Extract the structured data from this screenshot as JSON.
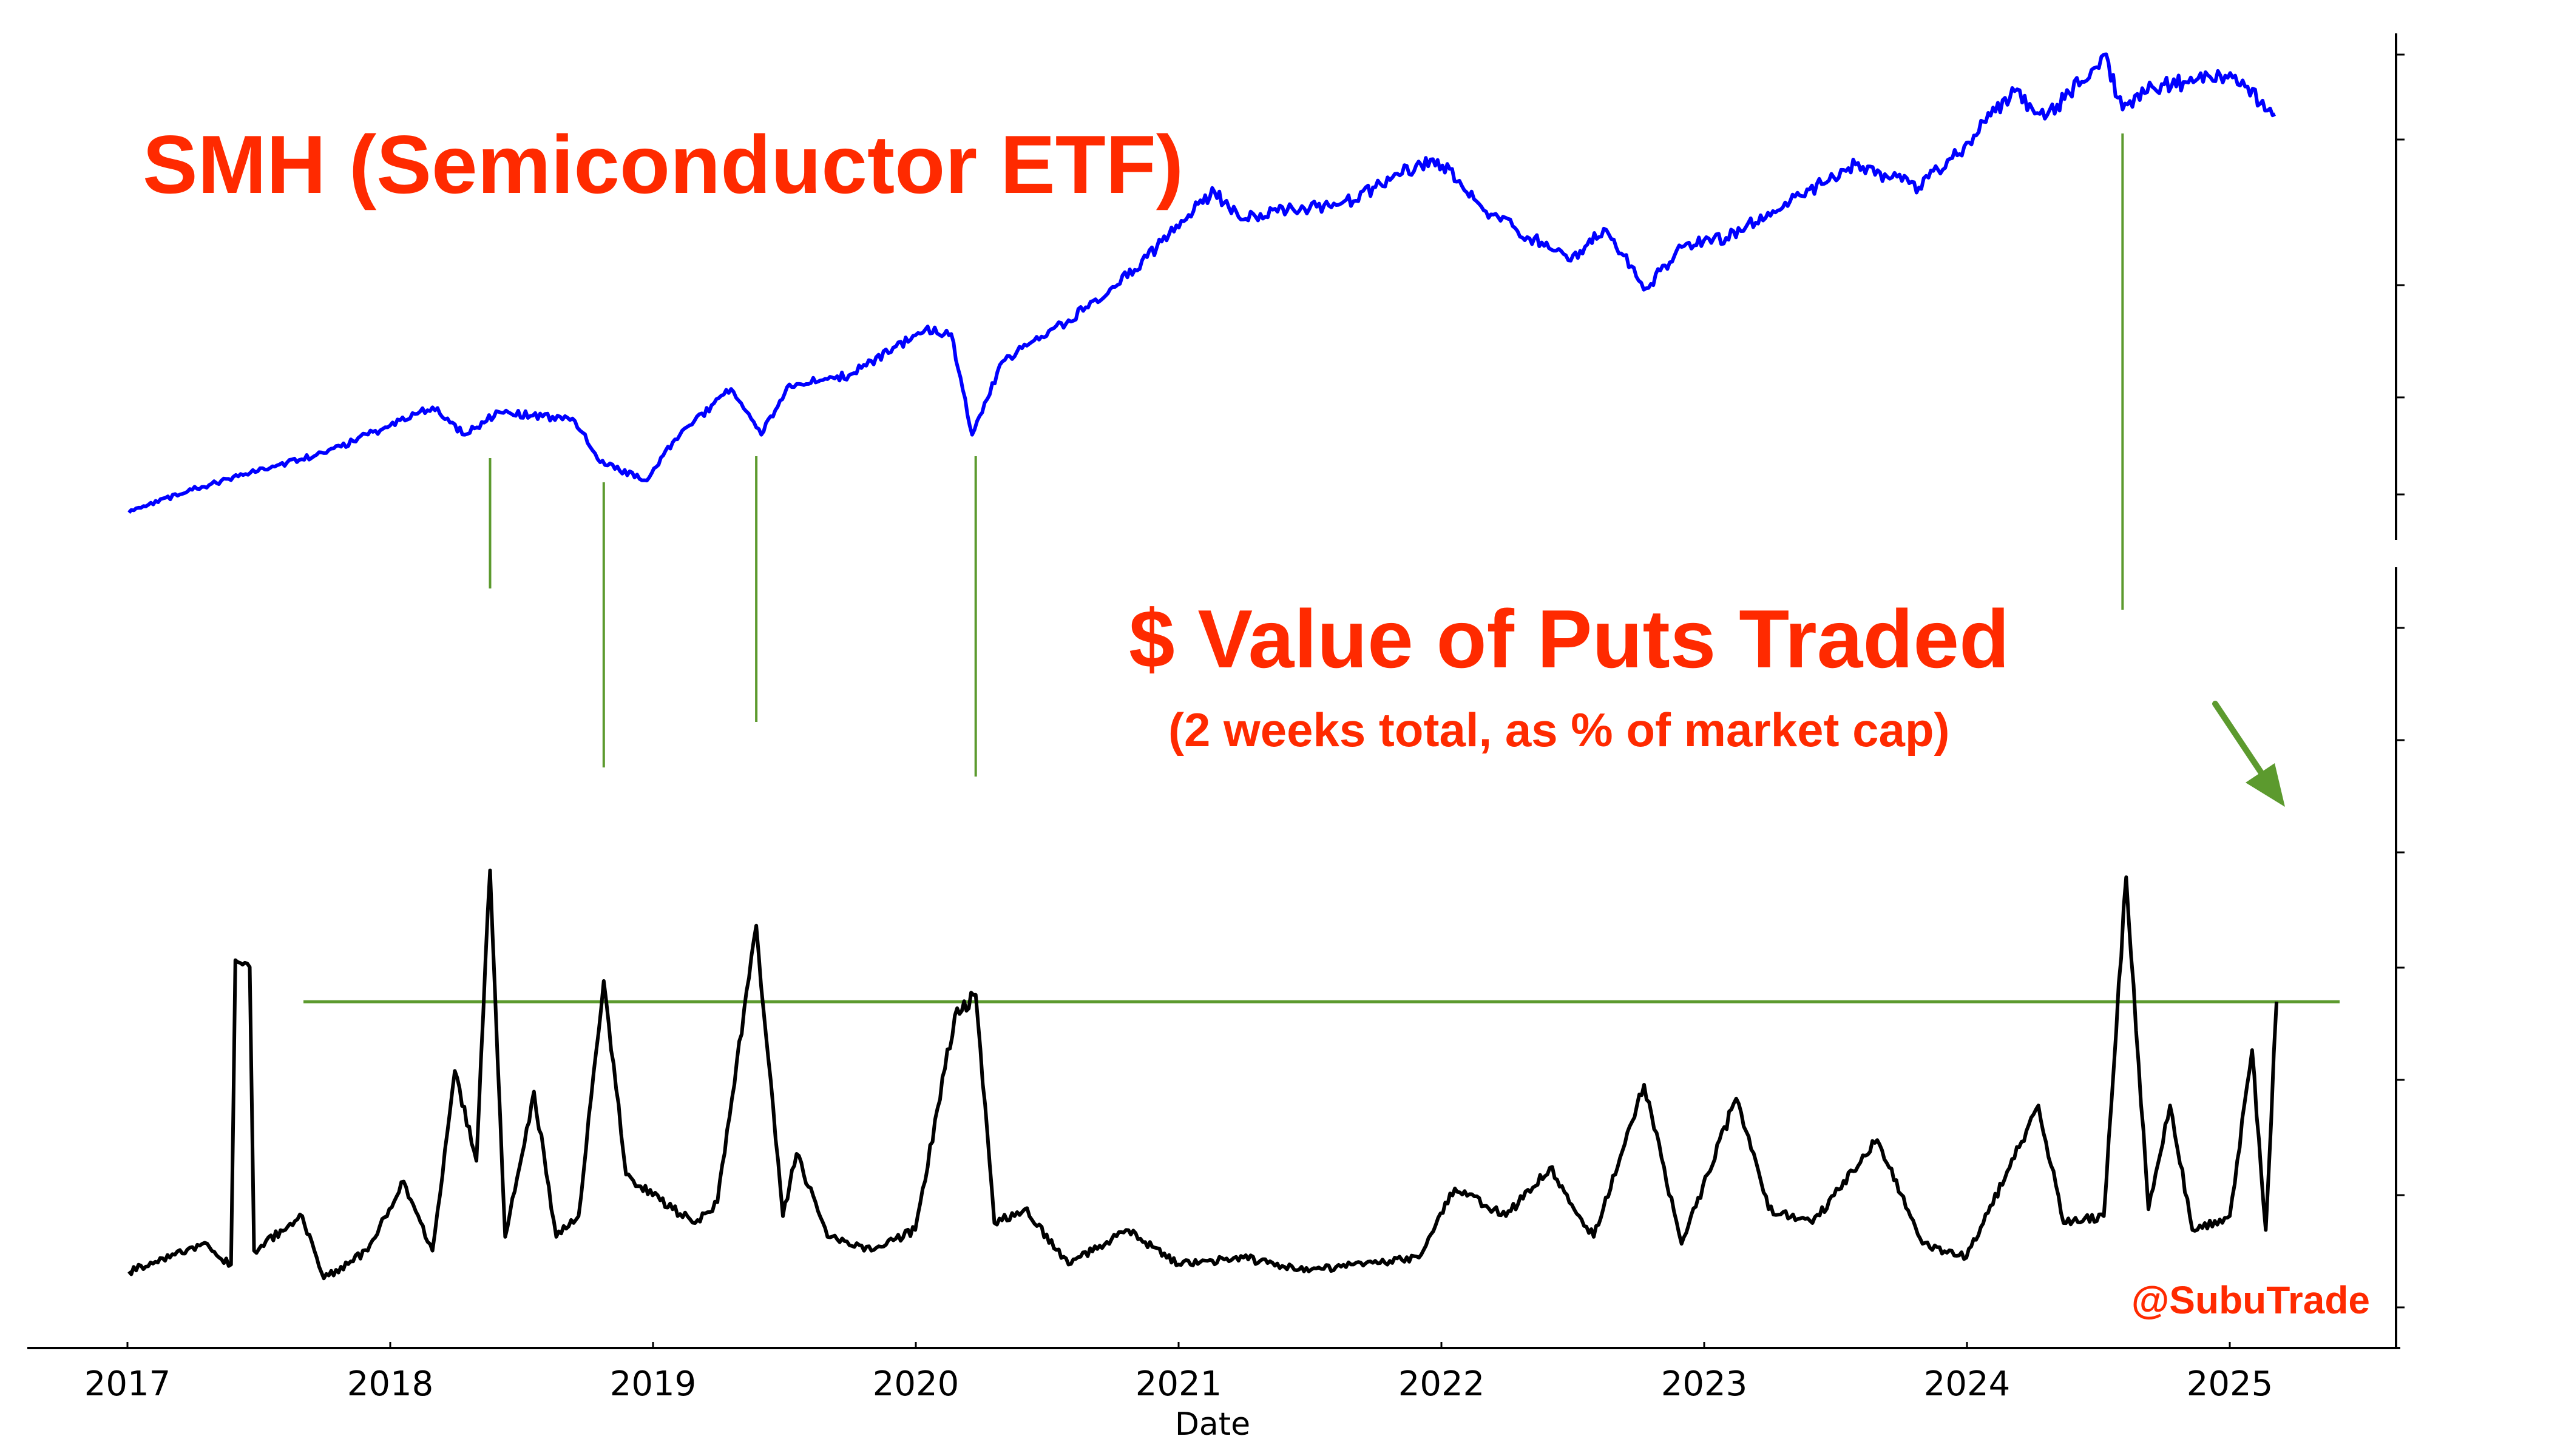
{
  "chart_data": {
    "type": "line",
    "xlabel": "Date",
    "x_ticks": [
      "2017",
      "2018",
      "2019",
      "2020",
      "2021",
      "2022",
      "2023",
      "2024",
      "2025"
    ],
    "xlim": [
      "2017-01-01",
      "2025-06-30"
    ],
    "grid": false,
    "panels": [
      {
        "name": "top",
        "title": "SMH (Semiconductor ETF)",
        "series": [
          {
            "color": "#0000ff",
            "points": [
              [
                "2017-01-03",
                0.0
              ],
              [
                "2017-04-01",
                0.05
              ],
              [
                "2017-07-01",
                0.09
              ],
              [
                "2017-10-01",
                0.13
              ],
              [
                "2018-01-01",
                0.19
              ],
              [
                "2018-03-01",
                0.23
              ],
              [
                "2018-04-15",
                0.17
              ],
              [
                "2018-06-01",
                0.22
              ],
              [
                "2018-08-01",
                0.21
              ],
              [
                "2018-09-15",
                0.2
              ],
              [
                "2018-10-20",
                0.11
              ],
              [
                "2018-12-24",
                0.07
              ],
              [
                "2019-02-01",
                0.16
              ],
              [
                "2019-04-20",
                0.27
              ],
              [
                "2019-06-01",
                0.17
              ],
              [
                "2019-07-10",
                0.28
              ],
              [
                "2019-10-01",
                0.3
              ],
              [
                "2020-01-15",
                0.4
              ],
              [
                "2020-02-20",
                0.39
              ],
              [
                "2020-03-20",
                0.17
              ],
              [
                "2020-05-01",
                0.33
              ],
              [
                "2020-08-01",
                0.42
              ],
              [
                "2020-11-01",
                0.53
              ],
              [
                "2021-01-15",
                0.65
              ],
              [
                "2021-02-20",
                0.7
              ],
              [
                "2021-04-01",
                0.64
              ],
              [
                "2021-06-01",
                0.66
              ],
              [
                "2021-09-01",
                0.68
              ],
              [
                "2021-11-01",
                0.74
              ],
              [
                "2021-12-27",
                0.77
              ],
              [
                "2022-03-01",
                0.66
              ],
              [
                "2022-06-30",
                0.55
              ],
              [
                "2022-08-15",
                0.62
              ],
              [
                "2022-10-13",
                0.49
              ],
              [
                "2022-12-01",
                0.58
              ],
              [
                "2023-02-01",
                0.6
              ],
              [
                "2023-05-01",
                0.68
              ],
              [
                "2023-07-31",
                0.76
              ],
              [
                "2023-10-27",
                0.71
              ],
              [
                "2023-12-29",
                0.8
              ],
              [
                "2024-03-08",
                0.92
              ],
              [
                "2024-04-19",
                0.86
              ],
              [
                "2024-07-10",
                1.0
              ],
              [
                "2024-08-05",
                0.88
              ],
              [
                "2024-09-15",
                0.93
              ],
              [
                "2024-11-01",
                0.94
              ],
              [
                "2025-01-05",
                0.95
              ],
              [
                "2025-03-05",
                0.87
              ]
            ]
          }
        ]
      },
      {
        "name": "bottom",
        "title": "$ Value of Puts Traded",
        "subtitle": "(2 weeks total, as % of market cap)",
        "threshold": 0.42,
        "series": [
          {
            "color": "#000000",
            "points": [
              [
                "2017-01-03",
                0.03
              ],
              [
                "2017-03-01",
                0.05
              ],
              [
                "2017-04-15",
                0.07
              ],
              [
                "2017-05-25",
                0.04
              ],
              [
                "2017-05-31",
                0.48
              ],
              [
                "2017-06-20",
                0.47
              ],
              [
                "2017-06-26",
                0.06
              ],
              [
                "2017-09-01",
                0.11
              ],
              [
                "2017-10-01",
                0.02
              ],
              [
                "2017-12-01",
                0.06
              ],
              [
                "2018-01-20",
                0.16
              ],
              [
                "2018-03-01",
                0.06
              ],
              [
                "2018-04-01",
                0.32
              ],
              [
                "2018-05-01",
                0.19
              ],
              [
                "2018-05-20",
                0.61
              ],
              [
                "2018-06-10",
                0.08
              ],
              [
                "2018-07-20",
                0.29
              ],
              [
                "2018-08-20",
                0.08
              ],
              [
                "2018-09-20",
                0.11
              ],
              [
                "2018-10-25",
                0.45
              ],
              [
                "2018-11-25",
                0.17
              ],
              [
                "2019-01-01",
                0.14
              ],
              [
                "2019-03-01",
                0.1
              ],
              [
                "2019-04-01",
                0.13
              ],
              [
                "2019-05-25",
                0.53
              ],
              [
                "2019-07-01",
                0.11
              ],
              [
                "2019-07-20",
                0.2
              ],
              [
                "2019-09-01",
                0.08
              ],
              [
                "2019-11-01",
                0.06
              ],
              [
                "2020-01-01",
                0.09
              ],
              [
                "2020-02-25",
                0.4
              ],
              [
                "2020-03-25",
                0.43
              ],
              [
                "2020-04-20",
                0.1
              ],
              [
                "2020-06-01",
                0.12
              ],
              [
                "2020-08-01",
                0.04
              ],
              [
                "2020-10-20",
                0.09
              ],
              [
                "2021-01-01",
                0.04
              ],
              [
                "2021-04-01",
                0.05
              ],
              [
                "2021-07-01",
                0.03
              ],
              [
                "2021-09-01",
                0.04
              ],
              [
                "2021-12-01",
                0.05
              ],
              [
                "2022-01-20",
                0.15
              ],
              [
                "2022-04-01",
                0.11
              ],
              [
                "2022-06-01",
                0.18
              ],
              [
                "2022-08-01",
                0.08
              ],
              [
                "2022-10-10",
                0.3
              ],
              [
                "2022-12-01",
                0.07
              ],
              [
                "2023-02-15",
                0.28
              ],
              [
                "2023-04-01",
                0.12
              ],
              [
                "2023-06-01",
                0.1
              ],
              [
                "2023-08-30",
                0.22
              ],
              [
                "2023-11-01",
                0.07
              ],
              [
                "2024-01-01",
                0.05
              ],
              [
                "2024-03-01",
                0.18
              ],
              [
                "2024-04-10",
                0.27
              ],
              [
                "2024-05-15",
                0.1
              ],
              [
                "2024-07-10",
                0.11
              ],
              [
                "2024-08-10",
                0.6
              ],
              [
                "2024-09-10",
                0.12
              ],
              [
                "2024-10-10",
                0.27
              ],
              [
                "2024-11-10",
                0.09
              ],
              [
                "2025-01-01",
                0.11
              ],
              [
                "2025-02-01",
                0.35
              ],
              [
                "2025-02-20",
                0.09
              ],
              [
                "2025-03-07",
                0.42
              ]
            ]
          }
        ]
      }
    ],
    "annotations": [
      "@SubuTrade"
    ]
  }
}
